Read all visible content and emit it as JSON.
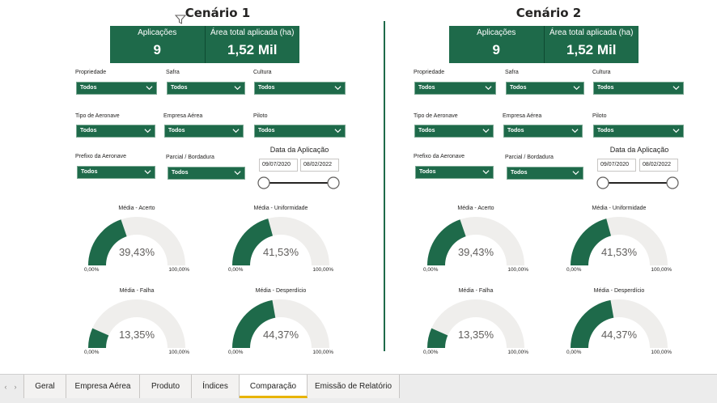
{
  "colors": {
    "accent": "#1e6a4a",
    "track": "#efeeec",
    "tab_active": "#e8b400"
  },
  "scenarios": [
    {
      "title": "Cenário 1",
      "kpi": {
        "aplicacoes_label": "Aplicações",
        "aplicacoes_value": "9",
        "area_label": "Área total aplicada (ha)",
        "area_value": "1,52 Mil"
      },
      "filters": {
        "propriedade": {
          "label": "Propriedade",
          "value": "Todos"
        },
        "safra": {
          "label": "Safra",
          "value": "Todos"
        },
        "cultura": {
          "label": "Cultura",
          "value": "Todos"
        },
        "tipo_aeronave": {
          "label": "Tipo de Aeronave",
          "value": "Todos"
        },
        "empresa_aerea": {
          "label": "Empresa Aérea",
          "value": "Todos"
        },
        "piloto": {
          "label": "Piloto",
          "value": "Todos"
        },
        "prefixo": {
          "label": "Prefixo da Aeronave",
          "value": "Todos"
        },
        "parcial": {
          "label": "Parcial / Bordadura",
          "value": "Todos"
        }
      },
      "date": {
        "label": "Data da Aplicação",
        "start": "09/07/2020",
        "end": "08/02/2022"
      },
      "gauges": [
        {
          "title": "Média - Acerto",
          "value": "39,43%",
          "fraction": 0.3943,
          "min": "0,00%",
          "max": "100,00%"
        },
        {
          "title": "Média - Uniformidade",
          "value": "41,53%",
          "fraction": 0.4153,
          "min": "0,00%",
          "max": "100,00%"
        },
        {
          "title": "Média - Falha",
          "value": "13,35%",
          "fraction": 0.1335,
          "min": "0,00%",
          "max": "100,00%"
        },
        {
          "title": "Média - Desperdício",
          "value": "44,37%",
          "fraction": 0.4437,
          "min": "0,00%",
          "max": "100,00%"
        }
      ]
    },
    {
      "title": "Cenário 2",
      "kpi": {
        "aplicacoes_label": "Aplicações",
        "aplicacoes_value": "9",
        "area_label": "Área total aplicada (ha)",
        "area_value": "1,52 Mil"
      },
      "filters": {
        "propriedade": {
          "label": "Propriedade",
          "value": "Todos"
        },
        "safra": {
          "label": "Safra",
          "value": "Todos"
        },
        "cultura": {
          "label": "Cultura",
          "value": "Todos"
        },
        "tipo_aeronave": {
          "label": "Tipo de Aeronave",
          "value": "Todos"
        },
        "empresa_aerea": {
          "label": "Empresa Aérea",
          "value": "Todos"
        },
        "piloto": {
          "label": "Piloto",
          "value": "Todos"
        },
        "prefixo": {
          "label": "Prefixo da Aeronave",
          "value": "Todos"
        },
        "parcial": {
          "label": "Parcial / Bordadura",
          "value": "Todos"
        }
      },
      "date": {
        "label": "Data da Aplicação",
        "start": "09/07/2020",
        "end": "08/02/2022"
      },
      "gauges": [
        {
          "title": "Média - Acerto",
          "value": "39,43%",
          "fraction": 0.3943,
          "min": "0,00%",
          "max": "100,00%"
        },
        {
          "title": "Média - Uniformidade",
          "value": "41,53%",
          "fraction": 0.4153,
          "min": "0,00%",
          "max": "100,00%"
        },
        {
          "title": "Média - Falha",
          "value": "13,35%",
          "fraction": 0.1335,
          "min": "0,00%",
          "max": "100,00%"
        },
        {
          "title": "Média - Desperdício",
          "value": "44,37%",
          "fraction": 0.4437,
          "min": "0,00%",
          "max": "100,00%"
        }
      ]
    }
  ],
  "tabs": [
    {
      "label": "Geral",
      "active": false
    },
    {
      "label": "Empresa Aérea",
      "active": false
    },
    {
      "label": "Produto",
      "active": false
    },
    {
      "label": "Índices",
      "active": false
    },
    {
      "label": "Comparação",
      "active": true
    },
    {
      "label": "Emissão de Relatório",
      "active": false
    }
  ],
  "icons": {
    "filter": "filter-icon",
    "chevron": "chevron-down-icon",
    "prev": "chevron-left-icon",
    "next": "chevron-right-icon"
  }
}
